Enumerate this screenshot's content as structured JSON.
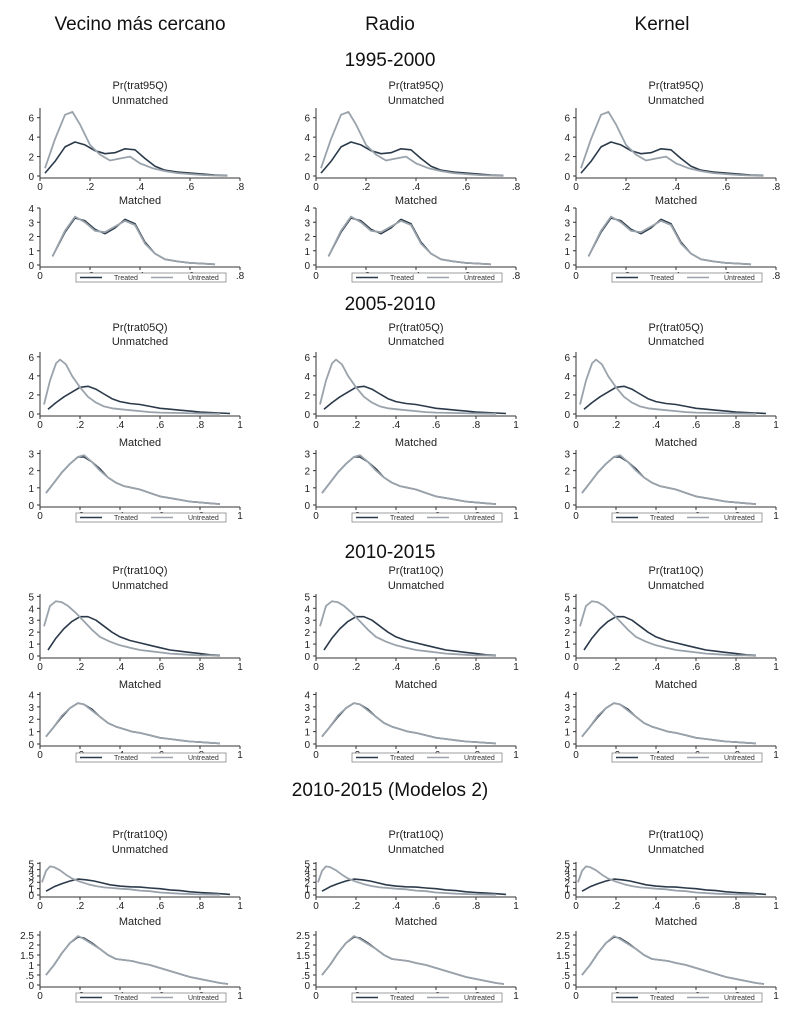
{
  "colors": {
    "treated": "#2b3a4a",
    "untreated": "#9aa3ab",
    "axis": "#333333"
  },
  "column_titles": [
    "Vecino más cercano",
    "Radio",
    "Kernel"
  ],
  "legend": {
    "treated": "Treated",
    "untreated": "Untreated"
  },
  "chart_data": [
    {
      "period": "1995-2000",
      "variable_label": "Pr(trat95Q)",
      "type": "line",
      "x_ticks": [
        "0",
        ".2",
        ".4",
        ".6",
        ".8"
      ],
      "xlim": [
        0,
        0.8
      ],
      "unmatched": {
        "title": "Unmatched",
        "ylim": [
          0,
          7
        ],
        "y_ticks": [
          "0",
          "2",
          "4",
          "6"
        ],
        "series": [
          {
            "name": "Treated",
            "x": [
              0.02,
              0.06,
              0.1,
              0.14,
              0.18,
              0.22,
              0.26,
              0.3,
              0.34,
              0.38,
              0.42,
              0.46,
              0.5,
              0.55,
              0.6,
              0.65,
              0.7,
              0.75
            ],
            "values": [
              0.3,
              1.5,
              3.0,
              3.5,
              3.2,
              2.6,
              2.3,
              2.4,
              2.8,
              2.7,
              1.8,
              1.0,
              0.6,
              0.4,
              0.3,
              0.2,
              0.1,
              0.05
            ]
          },
          {
            "name": "Untreated",
            "x": [
              0.02,
              0.06,
              0.1,
              0.13,
              0.16,
              0.2,
              0.24,
              0.28,
              0.32,
              0.36,
              0.4,
              0.45,
              0.5,
              0.55,
              0.6,
              0.65,
              0.7,
              0.75
            ],
            "values": [
              0.8,
              3.8,
              6.3,
              6.6,
              5.3,
              3.2,
              2.2,
              1.6,
              1.8,
              2.0,
              1.3,
              0.8,
              0.5,
              0.3,
              0.2,
              0.1,
              0.05,
              0.02
            ]
          }
        ]
      },
      "matched": {
        "title": "Matched",
        "ylim": [
          0,
          4
        ],
        "y_ticks": [
          "0",
          "1",
          "2",
          "3",
          "4"
        ],
        "series": [
          {
            "name": "Treated",
            "x": [
              0.05,
              0.1,
              0.14,
              0.18,
              0.22,
              0.26,
              0.3,
              0.34,
              0.38,
              0.42,
              0.46,
              0.5,
              0.55,
              0.6,
              0.65,
              0.7
            ],
            "values": [
              0.6,
              2.3,
              3.3,
              3.1,
              2.5,
              2.2,
              2.6,
              3.2,
              2.9,
              1.6,
              0.8,
              0.4,
              0.25,
              0.15,
              0.1,
              0.05
            ]
          },
          {
            "name": "Untreated",
            "x": [
              0.05,
              0.1,
              0.14,
              0.18,
              0.22,
              0.26,
              0.3,
              0.34,
              0.38,
              0.42,
              0.46,
              0.5,
              0.55,
              0.6,
              0.65,
              0.7
            ],
            "values": [
              0.6,
              2.4,
              3.4,
              3.0,
              2.4,
              2.3,
              2.7,
              3.1,
              2.8,
              1.5,
              0.8,
              0.4,
              0.25,
              0.15,
              0.1,
              0.05
            ]
          }
        ]
      }
    },
    {
      "period": "2005-2010",
      "variable_label": "Pr(trat05Q)",
      "type": "line",
      "x_ticks": [
        "0",
        ".2",
        ".4",
        ".6",
        ".8",
        "1"
      ],
      "xlim": [
        0,
        1
      ],
      "unmatched": {
        "title": "Unmatched",
        "ylim": [
          0,
          6.5
        ],
        "y_ticks": [
          "0",
          "2",
          "4",
          "6"
        ],
        "series": [
          {
            "name": "Treated",
            "x": [
              0.04,
              0.08,
              0.12,
              0.16,
              0.2,
              0.24,
              0.28,
              0.32,
              0.36,
              0.4,
              0.45,
              0.5,
              0.55,
              0.6,
              0.65,
              0.7,
              0.75,
              0.8,
              0.85,
              0.9,
              0.95
            ],
            "values": [
              0.5,
              1.2,
              1.8,
              2.3,
              2.8,
              2.9,
              2.6,
              2.1,
              1.6,
              1.3,
              1.1,
              1.0,
              0.8,
              0.6,
              0.5,
              0.4,
              0.3,
              0.2,
              0.15,
              0.1,
              0.05
            ]
          },
          {
            "name": "Untreated",
            "x": [
              0.02,
              0.05,
              0.08,
              0.1,
              0.13,
              0.16,
              0.2,
              0.24,
              0.28,
              0.32,
              0.36,
              0.4,
              0.45,
              0.5,
              0.55,
              0.6,
              0.7,
              0.8,
              0.9
            ],
            "values": [
              1.0,
              3.5,
              5.3,
              5.7,
              5.2,
              4.0,
              2.8,
              1.8,
              1.2,
              0.8,
              0.6,
              0.5,
              0.4,
              0.3,
              0.2,
              0.15,
              0.1,
              0.05,
              0.02
            ]
          }
        ]
      },
      "matched": {
        "title": "Matched",
        "ylim": [
          0,
          3.2
        ],
        "y_ticks": [
          "0",
          "1",
          "2",
          "3"
        ],
        "series": [
          {
            "name": "Treated",
            "x": [
              0.03,
              0.07,
              0.11,
              0.15,
              0.19,
              0.22,
              0.26,
              0.3,
              0.34,
              0.38,
              0.42,
              0.46,
              0.5,
              0.55,
              0.6,
              0.65,
              0.7,
              0.75,
              0.8,
              0.85,
              0.9
            ],
            "values": [
              0.7,
              1.3,
              1.9,
              2.4,
              2.8,
              2.8,
              2.5,
              2.1,
              1.6,
              1.3,
              1.1,
              1.0,
              0.9,
              0.7,
              0.5,
              0.4,
              0.3,
              0.2,
              0.15,
              0.1,
              0.05
            ]
          },
          {
            "name": "Untreated",
            "x": [
              0.03,
              0.07,
              0.11,
              0.15,
              0.19,
              0.22,
              0.26,
              0.3,
              0.34,
              0.38,
              0.42,
              0.46,
              0.5,
              0.55,
              0.6,
              0.65,
              0.7,
              0.75,
              0.8,
              0.85,
              0.9
            ],
            "values": [
              0.7,
              1.3,
              1.9,
              2.4,
              2.8,
              2.9,
              2.5,
              2.0,
              1.6,
              1.3,
              1.1,
              1.0,
              0.9,
              0.7,
              0.5,
              0.4,
              0.3,
              0.2,
              0.15,
              0.1,
              0.05
            ]
          }
        ]
      }
    },
    {
      "period": "2010-2015",
      "variable_label": "Pr(trat10Q)",
      "type": "line",
      "x_ticks": [
        "0",
        ".2",
        ".4",
        ".6",
        ".8",
        "1"
      ],
      "xlim": [
        0,
        1
      ],
      "unmatched": {
        "title": "Unmatched",
        "ylim": [
          0,
          5.2
        ],
        "y_ticks": [
          "0",
          "1",
          "2",
          "3",
          "4",
          "5"
        ],
        "series": [
          {
            "name": "Treated",
            "x": [
              0.04,
              0.08,
              0.12,
              0.16,
              0.2,
              0.24,
              0.28,
              0.32,
              0.36,
              0.4,
              0.45,
              0.5,
              0.55,
              0.6,
              0.65,
              0.7,
              0.75,
              0.8,
              0.85,
              0.9
            ],
            "values": [
              0.5,
              1.5,
              2.3,
              2.9,
              3.3,
              3.3,
              3.0,
              2.5,
              2.0,
              1.6,
              1.3,
              1.1,
              0.9,
              0.7,
              0.5,
              0.4,
              0.3,
              0.2,
              0.1,
              0.05
            ]
          },
          {
            "name": "Untreated",
            "x": [
              0.02,
              0.05,
              0.08,
              0.11,
              0.14,
              0.18,
              0.22,
              0.26,
              0.3,
              0.35,
              0.4,
              0.45,
              0.5,
              0.55,
              0.6,
              0.65,
              0.7,
              0.75,
              0.8,
              0.85,
              0.9
            ],
            "values": [
              2.5,
              4.2,
              4.6,
              4.5,
              4.2,
              3.6,
              2.9,
              2.2,
              1.6,
              1.2,
              0.9,
              0.7,
              0.5,
              0.4,
              0.3,
              0.2,
              0.15,
              0.1,
              0.05,
              0.05,
              0.02
            ]
          }
        ]
      },
      "matched": {
        "title": "Matched",
        "ylim": [
          0,
          4.2
        ],
        "y_ticks": [
          "0",
          "1",
          "2",
          "3",
          "4"
        ],
        "series": [
          {
            "name": "Treated",
            "x": [
              0.03,
              0.07,
              0.11,
              0.15,
              0.19,
              0.22,
              0.26,
              0.3,
              0.34,
              0.38,
              0.42,
              0.46,
              0.5,
              0.55,
              0.6,
              0.65,
              0.7,
              0.75,
              0.8,
              0.85,
              0.9
            ],
            "values": [
              0.6,
              1.4,
              2.2,
              2.9,
              3.3,
              3.2,
              2.8,
              2.2,
              1.7,
              1.4,
              1.2,
              1.0,
              0.9,
              0.7,
              0.5,
              0.4,
              0.3,
              0.2,
              0.15,
              0.1,
              0.05
            ]
          },
          {
            "name": "Untreated",
            "x": [
              0.03,
              0.07,
              0.11,
              0.15,
              0.19,
              0.22,
              0.26,
              0.3,
              0.34,
              0.38,
              0.42,
              0.46,
              0.5,
              0.55,
              0.6,
              0.65,
              0.7,
              0.75,
              0.8,
              0.85,
              0.9
            ],
            "values": [
              0.6,
              1.4,
              2.3,
              2.9,
              3.3,
              3.2,
              2.7,
              2.2,
              1.7,
              1.4,
              1.2,
              1.0,
              0.9,
              0.7,
              0.5,
              0.4,
              0.3,
              0.2,
              0.15,
              0.1,
              0.05
            ]
          }
        ]
      }
    },
    {
      "period": "2010-2015 (Modelos 2)",
      "variable_label": "Pr(trat10Q)",
      "type": "line",
      "x_ticks": [
        "0",
        ".2",
        ".4",
        ".6",
        ".8",
        "1"
      ],
      "xlim": [
        0,
        1
      ],
      "unmatched": {
        "title": "Unmatched",
        "ylim": [
          0,
          5.2
        ],
        "y_ticks": [
          "0",
          "1",
          "2",
          "3",
          "4",
          "5"
        ],
        "series": [
          {
            "name": "Treated",
            "x": [
              0.03,
              0.07,
              0.11,
              0.15,
              0.19,
              0.23,
              0.27,
              0.31,
              0.35,
              0.4,
              0.45,
              0.5,
              0.55,
              0.6,
              0.65,
              0.7,
              0.75,
              0.8,
              0.85,
              0.9,
              0.95
            ],
            "values": [
              0.6,
              1.3,
              1.8,
              2.2,
              2.5,
              2.4,
              2.2,
              1.9,
              1.6,
              1.4,
              1.3,
              1.25,
              1.1,
              1.0,
              0.8,
              0.7,
              0.5,
              0.4,
              0.3,
              0.2,
              0.1
            ]
          },
          {
            "name": "Untreated",
            "x": [
              0.01,
              0.03,
              0.05,
              0.07,
              0.1,
              0.13,
              0.16,
              0.2,
              0.24,
              0.28,
              0.32,
              0.36,
              0.4,
              0.45,
              0.5,
              0.55,
              0.6,
              0.7,
              0.8,
              0.9
            ],
            "values": [
              2.0,
              3.8,
              4.5,
              4.4,
              3.9,
              3.2,
              2.6,
              2.1,
              1.7,
              1.4,
              1.2,
              1.1,
              1.0,
              0.9,
              0.7,
              0.6,
              0.4,
              0.2,
              0.1,
              0.05
            ]
          }
        ]
      },
      "matched": {
        "title": "Matched",
        "ylim": [
          0,
          2.7
        ],
        "y_ticks": [
          "0",
          ".5",
          "1",
          "1.5",
          "2",
          "2.5"
        ],
        "series": [
          {
            "name": "Treated",
            "x": [
              0.03,
              0.07,
              0.11,
              0.15,
              0.19,
              0.22,
              0.26,
              0.3,
              0.34,
              0.38,
              0.42,
              0.46,
              0.5,
              0.55,
              0.6,
              0.65,
              0.7,
              0.75,
              0.8,
              0.85,
              0.9,
              0.94
            ],
            "values": [
              0.5,
              1.0,
              1.6,
              2.1,
              2.4,
              2.35,
              2.1,
              1.8,
              1.5,
              1.3,
              1.25,
              1.2,
              1.1,
              1.0,
              0.85,
              0.7,
              0.55,
              0.4,
              0.3,
              0.2,
              0.1,
              0.05
            ]
          },
          {
            "name": "Untreated",
            "x": [
              0.03,
              0.07,
              0.11,
              0.15,
              0.19,
              0.22,
              0.26,
              0.3,
              0.34,
              0.38,
              0.42,
              0.46,
              0.5,
              0.55,
              0.6,
              0.65,
              0.7,
              0.75,
              0.8,
              0.85,
              0.9,
              0.94
            ],
            "values": [
              0.5,
              1.0,
              1.6,
              2.1,
              2.45,
              2.3,
              2.05,
              1.8,
              1.5,
              1.3,
              1.25,
              1.2,
              1.1,
              1.0,
              0.85,
              0.7,
              0.55,
              0.4,
              0.3,
              0.2,
              0.1,
              0.05
            ]
          }
        ]
      }
    }
  ]
}
